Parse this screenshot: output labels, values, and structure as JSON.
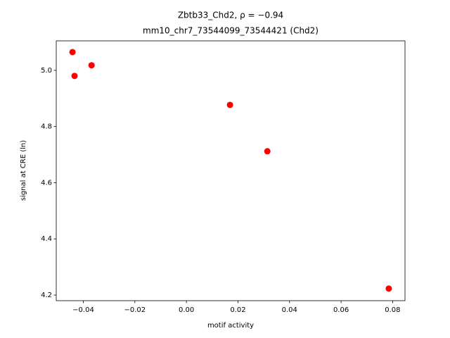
{
  "chart_data": {
    "type": "scatter",
    "title": [
      "Zbtb33_Chd2, ρ = −0.94",
      "mm10_chr7_73544099_73544421 (Chd2)"
    ],
    "x_label": "motif activity",
    "y_label": "signal at CRE (ln)",
    "color": "#ff0000",
    "series": [
      {
        "x": [
          -0.0442,
          -0.0434,
          -0.0368,
          0.0169,
          0.0314,
          0.0785
        ],
        "values": [
          5.065,
          4.98,
          5.018,
          4.877,
          4.712,
          4.223
        ]
      }
    ],
    "xlim": [
      -0.0505,
      0.0848
    ],
    "ylim": [
      4.18,
      5.105
    ],
    "xticks": [
      {
        "value": -0.04,
        "label": "−0.04"
      },
      {
        "value": -0.02,
        "label": "−0.02"
      },
      {
        "value": 0,
        "label": "0.00"
      },
      0.02,
      0.04,
      0.06,
      0.08
    ],
    "yticks": [
      4.2,
      4.4,
      4.6,
      4.8,
      {
        "value": 5,
        "label": "5.0"
      }
    ]
  }
}
